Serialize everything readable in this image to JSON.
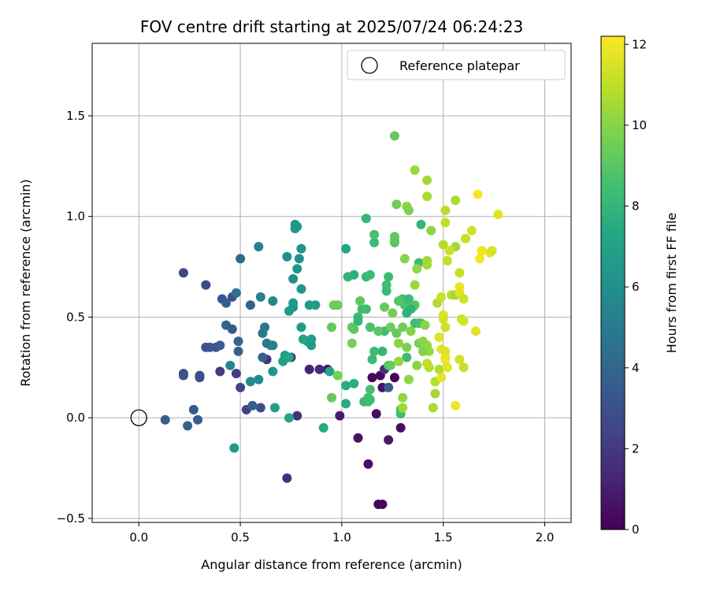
{
  "chart_data": {
    "type": "scatter",
    "title": "FOV centre drift starting at 2025/07/24 06:24:23",
    "xlabel": "Angular distance from reference (arcmin)",
    "ylabel": "Rotation from reference (arcmin)",
    "xlim": [
      -0.23,
      2.13
    ],
    "ylim": [
      -0.52,
      1.86
    ],
    "xticks": [
      "0.0",
      "0.5",
      "1.0",
      "1.5",
      "2.0"
    ],
    "yticks": [
      "−0.5",
      "0.0",
      "0.5",
      "1.0",
      "1.5"
    ],
    "grid": true,
    "legend": {
      "position": "top-right",
      "entries": [
        "Reference platepar"
      ]
    },
    "reference_point": {
      "x": 0.0,
      "y": 0.0
    },
    "colorbar": {
      "label": "Hours from first FF file",
      "min": 0,
      "max": 12.2,
      "ticks": [
        "0",
        "2",
        "4",
        "6",
        "8",
        "10",
        "12"
      ],
      "colormap": "viridis"
    },
    "points": [
      [
        1.18,
        -0.43,
        0.2
      ],
      [
        1.2,
        -0.43,
        0.3
      ],
      [
        1.13,
        -0.23,
        0.5
      ],
      [
        1.23,
        -0.11,
        0.8
      ],
      [
        1.08,
        -0.1,
        0.6
      ],
      [
        1.29,
        -0.05,
        0.4
      ],
      [
        0.99,
        0.01,
        0.9
      ],
      [
        1.17,
        0.02,
        0.5
      ],
      [
        1.15,
        0.2,
        0.2
      ],
      [
        1.19,
        0.21,
        0.4
      ],
      [
        1.26,
        0.2,
        0.1
      ],
      [
        1.2,
        0.15,
        0.6
      ],
      [
        0.93,
        0.24,
        0.7
      ],
      [
        0.84,
        0.24,
        1.2
      ],
      [
        0.89,
        0.24,
        1.5
      ],
      [
        1.21,
        0.24,
        1.8
      ],
      [
        1.23,
        0.15,
        3.5
      ],
      [
        0.73,
        -0.3,
        1.6
      ],
      [
        0.48,
        0.22,
        2.2
      ],
      [
        0.78,
        0.01,
        1.8
      ],
      [
        0.75,
        0.3,
        1.9
      ],
      [
        0.63,
        0.29,
        1.7
      ],
      [
        0.53,
        0.04,
        2.4
      ],
      [
        0.6,
        0.05,
        2.9
      ],
      [
        0.5,
        0.15,
        2.5
      ],
      [
        0.4,
        0.23,
        2.2
      ],
      [
        0.22,
        0.72,
        2.5
      ],
      [
        0.33,
        0.66,
        2.6
      ],
      [
        0.46,
        0.6,
        3.2
      ],
      [
        0.41,
        0.59,
        3.2
      ],
      [
        0.43,
        0.57,
        3.6
      ],
      [
        0.38,
        0.35,
        3.4
      ],
      [
        0.33,
        0.35,
        3.1
      ],
      [
        0.35,
        0.35,
        3.3
      ],
      [
        0.4,
        0.36,
        3.5
      ],
      [
        0.43,
        0.46,
        3.9
      ],
      [
        0.46,
        0.44,
        3.5
      ],
      [
        0.22,
        0.22,
        3.1
      ],
      [
        0.22,
        0.21,
        3.2
      ],
      [
        0.3,
        0.21,
        3.3
      ],
      [
        0.3,
        0.2,
        3.0
      ],
      [
        0.27,
        0.04,
        3.3
      ],
      [
        0.24,
        -0.04,
        3.7
      ],
      [
        0.29,
        -0.01,
        3.5
      ],
      [
        0.13,
        -0.01,
        3.6
      ],
      [
        0.55,
        0.56,
        3.8
      ],
      [
        0.56,
        0.06,
        3.7
      ],
      [
        0.61,
        0.3,
        3.9
      ],
      [
        0.49,
        0.33,
        3.8
      ],
      [
        0.49,
        0.38,
        3.9
      ],
      [
        0.5,
        0.79,
        4.3
      ],
      [
        0.48,
        0.62,
        4.6
      ],
      [
        0.66,
        0.58,
        5.5
      ],
      [
        0.63,
        0.37,
        5.0
      ],
      [
        0.65,
        0.36,
        4.9
      ],
      [
        0.61,
        0.42,
        5.0
      ],
      [
        0.66,
        0.36,
        5.2
      ],
      [
        0.62,
        0.45,
        4.9
      ],
      [
        0.59,
        0.85,
        5.4
      ],
      [
        0.6,
        0.6,
        5.3
      ],
      [
        0.45,
        0.26,
        5.6
      ],
      [
        0.55,
        0.18,
        5.8
      ],
      [
        0.59,
        0.19,
        5.9
      ],
      [
        0.47,
        -0.15,
        6.5
      ],
      [
        0.73,
        0.8,
        6.1
      ],
      [
        0.77,
        0.96,
        6.4
      ],
      [
        0.77,
        0.94,
        6.5
      ],
      [
        0.78,
        0.95,
        6.4
      ],
      [
        0.79,
        0.79,
        6.1
      ],
      [
        0.8,
        0.84,
        6.2
      ],
      [
        0.76,
        0.69,
        6.0
      ],
      [
        0.78,
        0.74,
        6.3
      ],
      [
        0.8,
        0.64,
        6.4
      ],
      [
        0.74,
        0.53,
        6.6
      ],
      [
        0.76,
        0.55,
        6.3
      ],
      [
        0.76,
        0.57,
        6.5
      ],
      [
        0.8,
        0.45,
        6.7
      ],
      [
        0.84,
        0.56,
        6.6
      ],
      [
        0.87,
        0.56,
        6.8
      ],
      [
        0.81,
        0.39,
        7.0
      ],
      [
        0.83,
        0.38,
        7.1
      ],
      [
        0.85,
        0.39,
        6.8
      ],
      [
        0.85,
        0.36,
        6.7
      ],
      [
        0.72,
        0.31,
        6.9
      ],
      [
        0.71,
        0.28,
        6.8
      ],
      [
        0.74,
        0.3,
        7.2
      ],
      [
        0.66,
        0.23,
        6.4
      ],
      [
        0.67,
        0.05,
        6.9
      ],
      [
        0.74,
        0.0,
        7.3
      ],
      [
        0.91,
        -0.05,
        7.5
      ],
      [
        0.94,
        0.23,
        7.2
      ],
      [
        1.02,
        0.07,
        7.5
      ],
      [
        1.06,
        0.17,
        7.6
      ],
      [
        1.02,
        0.16,
        7.6
      ],
      [
        1.02,
        0.84,
        7.3
      ],
      [
        1.03,
        0.7,
        7.9
      ],
      [
        1.06,
        0.71,
        7.8
      ],
      [
        1.08,
        0.5,
        8.2
      ],
      [
        1.08,
        0.48,
        8.0
      ],
      [
        1.12,
        0.99,
        8.0
      ],
      [
        1.12,
        0.7,
        8.1
      ],
      [
        1.14,
        0.71,
        8.4
      ],
      [
        1.16,
        0.87,
        8.3
      ],
      [
        1.16,
        0.91,
        8.6
      ],
      [
        1.12,
        0.54,
        8.3
      ],
      [
        1.1,
        0.54,
        8.5
      ],
      [
        1.14,
        0.45,
        8.7
      ],
      [
        1.18,
        0.43,
        8.5
      ],
      [
        1.21,
        0.43,
        8.4
      ],
      [
        1.22,
        0.63,
        8.2
      ],
      [
        1.22,
        0.66,
        8.5
      ],
      [
        1.23,
        0.7,
        8.3
      ],
      [
        1.2,
        0.33,
        8.0
      ],
      [
        1.16,
        0.33,
        8.4
      ],
      [
        1.15,
        0.29,
        8.2
      ],
      [
        1.23,
        0.26,
        8.6
      ],
      [
        1.11,
        0.08,
        8.1
      ],
      [
        1.13,
        0.08,
        8.3
      ],
      [
        1.13,
        0.1,
        8.5
      ],
      [
        1.14,
        0.09,
        8.4
      ],
      [
        1.14,
        0.14,
        8.6
      ],
      [
        1.29,
        0.02,
        8.5
      ],
      [
        1.29,
        0.04,
        8.7
      ],
      [
        1.32,
        0.3,
        8.4
      ],
      [
        1.31,
        0.56,
        8.7
      ],
      [
        1.3,
        0.59,
        8.6
      ],
      [
        1.28,
        0.58,
        8.9
      ],
      [
        1.26,
        0.87,
        8.8
      ],
      [
        1.26,
        0.88,
        9.0
      ],
      [
        1.26,
        0.9,
        9.2
      ],
      [
        1.27,
        1.06,
        9.5
      ],
      [
        1.26,
        1.4,
        9.3
      ],
      [
        1.21,
        0.55,
        9.3
      ],
      [
        1.25,
        0.52,
        9.6
      ],
      [
        1.24,
        0.45,
        9.4
      ],
      [
        1.27,
        0.42,
        9.3
      ],
      [
        1.3,
        0.45,
        9.5
      ],
      [
        1.24,
        0.26,
        9.2
      ],
      [
        1.09,
        0.58,
        9.1
      ],
      [
        1.05,
        0.45,
        9.3
      ],
      [
        1.05,
        0.37,
        9.6
      ],
      [
        0.98,
        0.56,
        9.4
      ],
      [
        0.96,
        0.56,
        9.5
      ],
      [
        0.98,
        0.21,
        9.6
      ],
      [
        0.95,
        0.1,
        9.3
      ],
      [
        0.95,
        0.45,
        9.2
      ],
      [
        1.06,
        0.44,
        9.1
      ],
      [
        1.18,
        0.43,
        9.0
      ],
      [
        1.36,
        0.56,
        9.0
      ],
      [
        1.35,
        0.55,
        8.9
      ],
      [
        1.33,
        0.59,
        8.2
      ],
      [
        1.38,
        0.47,
        8.0
      ],
      [
        1.39,
        0.96,
        8.1
      ],
      [
        1.38,
        0.77,
        8.3
      ],
      [
        1.36,
        0.47,
        8.4
      ],
      [
        1.39,
        0.47,
        8.6
      ],
      [
        1.34,
        0.54,
        7.9
      ],
      [
        1.32,
        0.52,
        7.8
      ],
      [
        1.32,
        0.35,
        9.8
      ],
      [
        1.34,
        0.43,
        9.9
      ],
      [
        1.38,
        0.37,
        9.7
      ],
      [
        1.37,
        0.26,
        10.0
      ],
      [
        1.42,
        0.36,
        10.2
      ],
      [
        1.43,
        0.33,
        10.3
      ],
      [
        1.41,
        0.46,
        10.0
      ],
      [
        1.4,
        0.38,
        10.1
      ],
      [
        1.4,
        0.33,
        9.9
      ],
      [
        1.31,
        0.79,
        10.0
      ],
      [
        1.32,
        1.05,
        10.1
      ],
      [
        1.36,
        1.23,
        10.3
      ],
      [
        1.42,
        1.18,
        10.5
      ],
      [
        1.42,
        1.1,
        10.6
      ],
      [
        1.37,
        0.74,
        10.2
      ],
      [
        1.36,
        0.66,
        10.4
      ],
      [
        1.42,
        0.78,
        10.4
      ],
      [
        1.42,
        0.76,
        10.5
      ],
      [
        1.44,
        0.93,
        10.1
      ],
      [
        1.33,
        1.03,
        9.8
      ],
      [
        1.28,
        0.37,
        10.0
      ],
      [
        1.28,
        0.28,
        10.3
      ],
      [
        1.33,
        0.19,
        10.1
      ],
      [
        1.3,
        0.1,
        10.2
      ],
      [
        1.3,
        0.05,
        10.4
      ],
      [
        1.45,
        0.05,
        10.6
      ],
      [
        1.46,
        0.12,
        10.5
      ],
      [
        1.48,
        0.24,
        10.7
      ],
      [
        1.46,
        0.18,
        10.8
      ],
      [
        1.43,
        0.25,
        10.9
      ],
      [
        1.42,
        0.27,
        11.0
      ],
      [
        1.47,
        0.57,
        10.7
      ],
      [
        1.5,
        0.86,
        10.8
      ],
      [
        1.51,
        1.03,
        10.9
      ],
      [
        1.51,
        0.97,
        11.0
      ],
      [
        1.52,
        0.78,
        11.1
      ],
      [
        1.54,
        0.61,
        10.9
      ],
      [
        1.56,
        1.08,
        10.6
      ],
      [
        1.56,
        0.85,
        10.5
      ],
      [
        1.56,
        0.61,
        10.4
      ],
      [
        1.49,
        0.6,
        11.2
      ],
      [
        1.53,
        0.83,
        11.3
      ],
      [
        1.5,
        0.51,
        11.5
      ],
      [
        1.5,
        0.49,
        11.4
      ],
      [
        1.48,
        0.4,
        11.6
      ],
      [
        1.49,
        0.34,
        11.7
      ],
      [
        1.51,
        0.3,
        11.8
      ],
      [
        1.51,
        0.33,
        11.6
      ],
      [
        1.51,
        0.29,
        11.9
      ],
      [
        1.52,
        0.25,
        11.7
      ],
      [
        1.49,
        0.2,
        11.8
      ],
      [
        1.51,
        0.45,
        11.3
      ],
      [
        1.58,
        0.72,
        11.2
      ],
      [
        1.58,
        0.65,
        11.8
      ],
      [
        1.58,
        0.62,
        11.6
      ],
      [
        1.6,
        0.59,
        11.3
      ],
      [
        1.59,
        0.49,
        11.2
      ],
      [
        1.6,
        0.48,
        11.4
      ],
      [
        1.58,
        0.29,
        11.4
      ],
      [
        1.6,
        0.25,
        11.1
      ],
      [
        1.61,
        0.89,
        11.1
      ],
      [
        1.64,
        0.93,
        11.3
      ],
      [
        1.56,
        0.06,
        11.9
      ],
      [
        1.66,
        0.43,
        11.6
      ],
      [
        1.68,
        0.79,
        12.0
      ],
      [
        1.69,
        0.83,
        11.9
      ],
      [
        1.73,
        0.82,
        11.8
      ],
      [
        1.77,
        1.01,
        11.7
      ],
      [
        1.67,
        1.11,
        12.1
      ],
      [
        1.74,
        0.83,
        11.5
      ]
    ]
  }
}
